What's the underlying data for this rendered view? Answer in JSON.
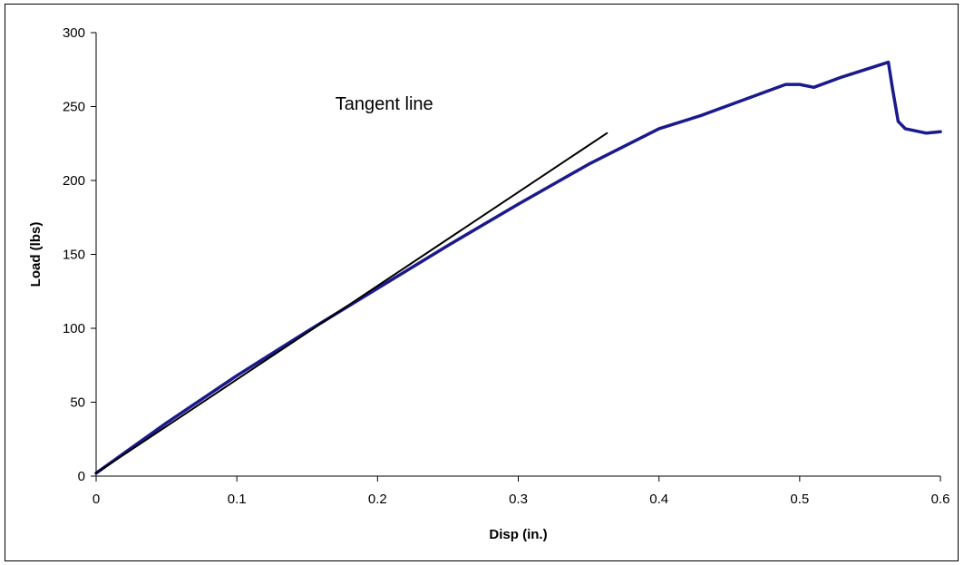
{
  "chart_data": {
    "type": "line",
    "title": "",
    "xlabel": "Disp (in.)",
    "ylabel": "Load (lbs)",
    "xlim": [
      0,
      0.6
    ],
    "ylim": [
      0,
      300
    ],
    "x_ticks": [
      0,
      0.1,
      0.2,
      0.3,
      0.4,
      0.5,
      0.6
    ],
    "x_tick_labels": [
      "0",
      "0.1",
      "0.2",
      "0.3",
      "0.4",
      "0.5",
      "0.6"
    ],
    "y_ticks": [
      0,
      50,
      100,
      150,
      200,
      250,
      300
    ],
    "y_tick_labels": [
      "0",
      "50",
      "100",
      "150",
      "200",
      "250",
      "300"
    ],
    "grid": false,
    "legend": "none",
    "series": [
      {
        "color": "#1a1a8c",
        "x": [
          0,
          0.05,
          0.1,
          0.15,
          0.2,
          0.25,
          0.3,
          0.35,
          0.4,
          0.41,
          0.43,
          0.45,
          0.47,
          0.49,
          0.5,
          0.51,
          0.53,
          0.55,
          0.563,
          0.566,
          0.57,
          0.575,
          0.58,
          0.585,
          0.59,
          0.6
        ],
        "y": [
          2,
          36,
          68,
          98,
          127,
          156,
          184,
          211,
          235,
          238,
          244,
          251,
          258,
          265,
          265,
          263,
          270,
          276,
          280,
          262,
          240,
          235,
          234,
          233,
          232,
          233
        ]
      },
      {
        "color": "#000000",
        "x": [
          0,
          0.363
        ],
        "y": [
          2,
          232
        ]
      }
    ],
    "annotations": [
      {
        "text": "Tangent line",
        "x": 0.17,
        "y": 248
      }
    ]
  }
}
